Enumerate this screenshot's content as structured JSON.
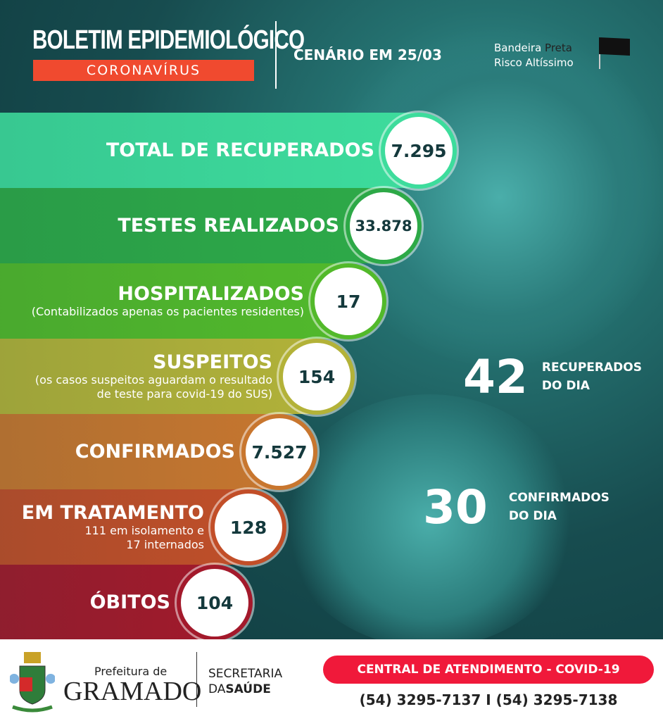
{
  "header": {
    "title": "BOLETIM EPIDEMIOLÓGICO",
    "subtitle": "CORONAVÍRUS",
    "scenario": "CENÁRIO EM 25/03",
    "flag_label_1": "Bandeira",
    "flag_label_2": "Preta",
    "flag_risk": "Risco Altíssimo"
  },
  "stats": [
    {
      "label": "TOTAL DE RECUPERADOS",
      "note": "",
      "value": "7.295",
      "color": "#3ddc9c"
    },
    {
      "label": "TESTES REALIZADOS",
      "note": "",
      "value": "33.878",
      "color": "#2da947"
    },
    {
      "label": "HOSPITALIZADOS",
      "note": "(Contabilizados apenas os pacientes residentes)",
      "value": "17",
      "color": "#52b92a"
    },
    {
      "label": "SUSPEITOS",
      "note": "(os casos suspeitos aguardam o resultado de teste para covid-19 do SUS)",
      "value": "154",
      "color": "#b3b238"
    },
    {
      "label": "CONFIRMADOS",
      "note": "",
      "value": "7.527",
      "color": "#c8762e"
    },
    {
      "label": "EM TRATAMENTO",
      "note": "111 em isolamento e 17 internados",
      "value": "128",
      "color": "#c24e28"
    },
    {
      "label": "ÓBITOS",
      "note": "",
      "value": "104",
      "color": "#a3192b"
    }
  ],
  "daily": [
    {
      "value": "42",
      "label_1": "RECUPERADOS",
      "label_2": "DO DIA",
      "color": "#27e01c"
    },
    {
      "value": "30",
      "label_1": "CONFIRMADOS",
      "label_2": "DO DIA",
      "color": "#f2141c"
    }
  ],
  "footer": {
    "prefeitura": "Prefeitura de",
    "city": "GRAMADO",
    "secretaria_1": "SECRETARIA",
    "secretaria_2a": "DA",
    "secretaria_2b": "SAÚDE",
    "central": "CENTRAL DE ATENDIMENTO - COVID-19",
    "phones": "(54) 3295-7137 I (54) 3295-7138"
  }
}
